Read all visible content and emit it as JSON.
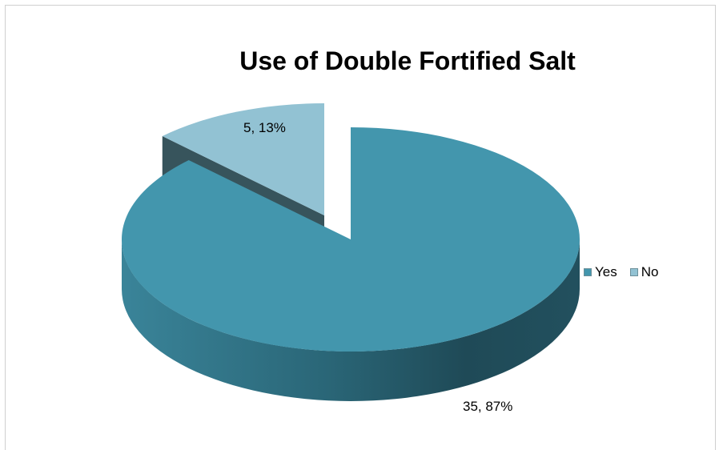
{
  "chart_data": {
    "type": "pie",
    "title": "Use of Double Fortified Salt",
    "categories": [
      "Yes",
      "No"
    ],
    "values": [
      35,
      5
    ],
    "percentages": [
      87,
      13
    ],
    "data_labels": [
      "35, 87%",
      "5, 13%"
    ],
    "colors": [
      "#4396ad",
      "#92c2d3"
    ],
    "legend_position": "right",
    "exploded": "No",
    "style": "3d"
  },
  "legend": {
    "yes": "Yes",
    "no": "No"
  }
}
